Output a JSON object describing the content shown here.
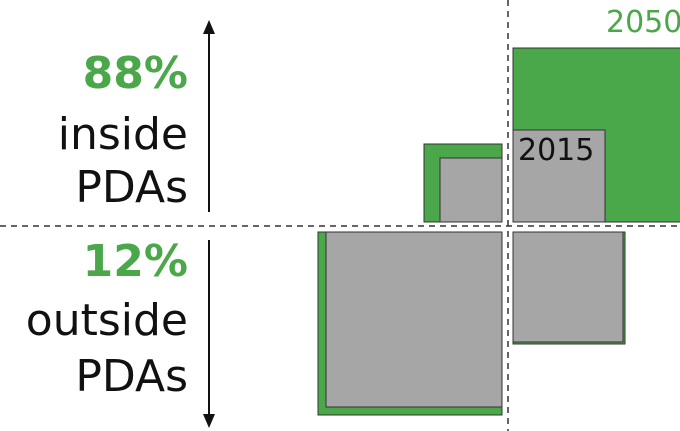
{
  "colors": {
    "green": "#4aa84a",
    "gray": "#a6a6a6",
    "stroke": "#333333",
    "text": "#111111"
  },
  "top_region": {
    "percent": "88%",
    "line1": "inside",
    "line2": "PDAs"
  },
  "bottom_region": {
    "percent": "12%",
    "line1": "outside",
    "line2": "PDAs"
  },
  "year_labels": {
    "future": "2050",
    "current": "2015"
  }
}
